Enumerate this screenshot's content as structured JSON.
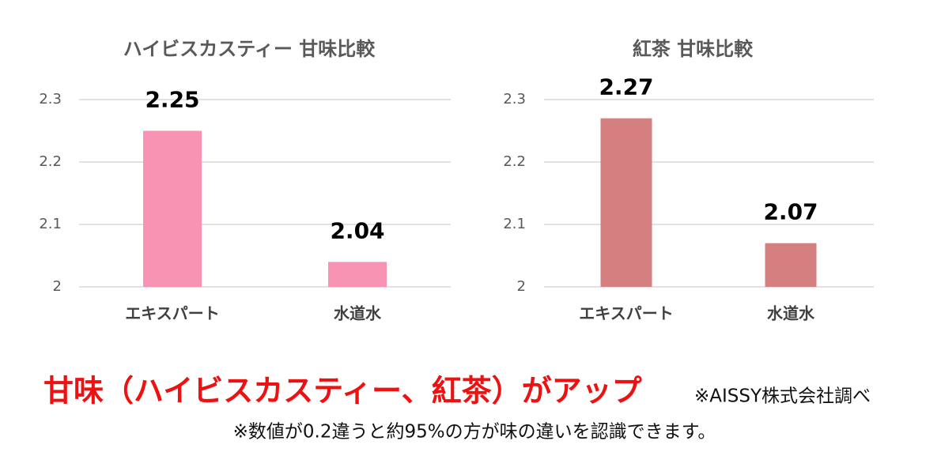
{
  "chart_data": [
    {
      "type": "bar",
      "title": "ハイビスカスティー 甘味比較",
      "categories": [
        "エキスパート",
        "水道水"
      ],
      "values": [
        2.25,
        2.04
      ],
      "color": "#f794b4",
      "ylim": [
        2,
        2.3
      ],
      "yticks": [
        2,
        2.1,
        2.2,
        2.3
      ],
      "grid": true
    },
    {
      "type": "bar",
      "title": "紅茶 甘味比較",
      "categories": [
        "エキスパート",
        "水道水"
      ],
      "values": [
        2.27,
        2.07
      ],
      "color": "#d48080",
      "ylim": [
        2,
        2.3
      ],
      "yticks": [
        2,
        2.1,
        2.2,
        2.3
      ],
      "grid": true
    }
  ],
  "footer": {
    "headline": "甘味（ハイビスカスティー、紅茶）がアップ",
    "credit": "※AISSY株式会社調べ",
    "note": "※数値が0.2違うと約95%の方が味の違いを認識できます。"
  }
}
